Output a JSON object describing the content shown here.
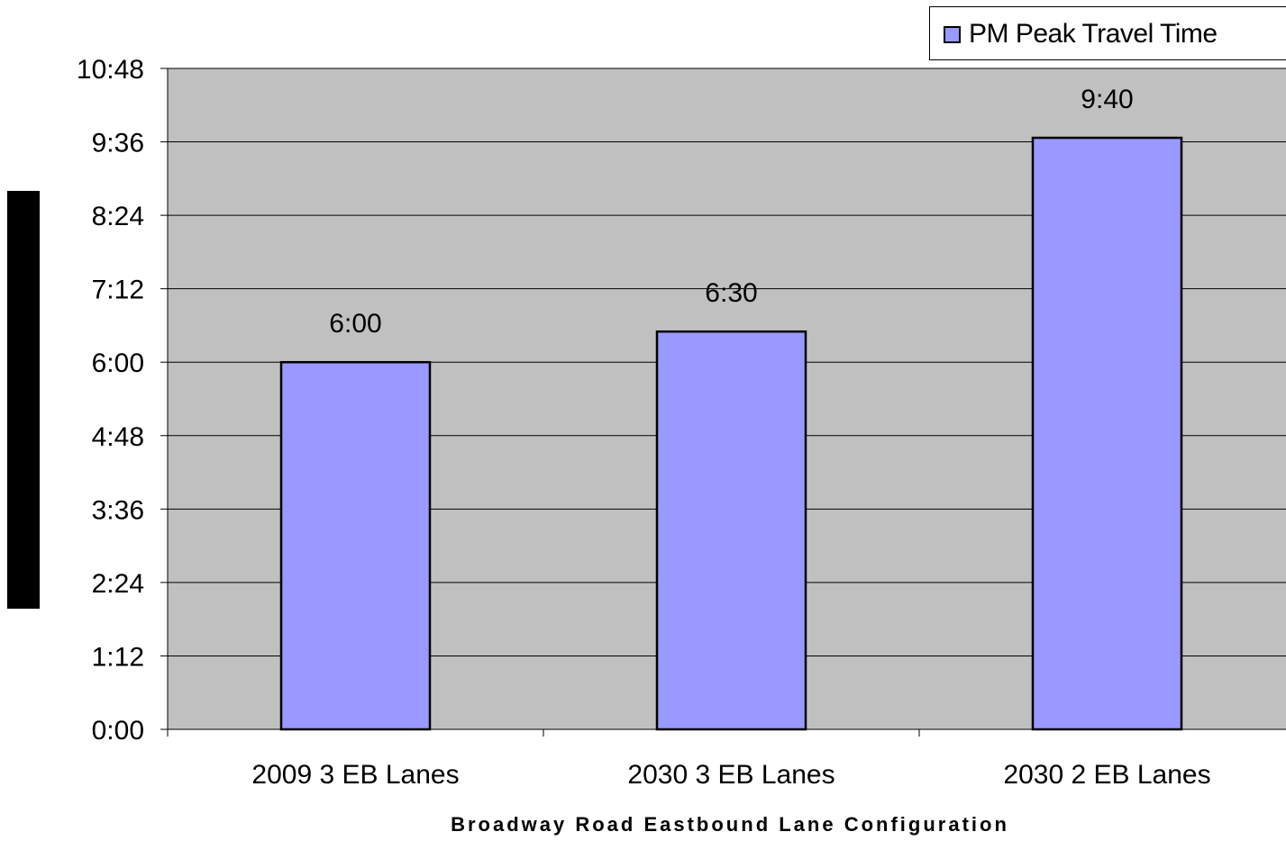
{
  "chart_data": {
    "type": "bar",
    "categories": [
      "2009 3 EB Lanes",
      "2030 3 EB Lanes",
      "2030 2 EB Lanes"
    ],
    "series": [
      {
        "name": "PM Peak Travel Time",
        "values": [
          360,
          390,
          580
        ],
        "data_labels": [
          "6:00",
          "6:30",
          "9:40"
        ],
        "color": "#9999ff"
      }
    ],
    "y_tick_labels": [
      "0:00",
      "1:12",
      "2:24",
      "3:36",
      "4:48",
      "6:00",
      "7:12",
      "8:24",
      "9:36",
      "10:48"
    ],
    "y_tick_values": [
      0,
      72,
      144,
      216,
      288,
      360,
      432,
      504,
      576,
      648
    ],
    "ylim": [
      0,
      648
    ],
    "y_units": "seconds (axis shows m:ss)",
    "xlabel": "Broadway Road Eastbound Lane Configuration",
    "ylabel": "",
    "grid": true,
    "legend_position": "top-right",
    "plot_background": "#c0c0c0",
    "gridline_color": "#000000",
    "bar_border_color": "#000000"
  }
}
